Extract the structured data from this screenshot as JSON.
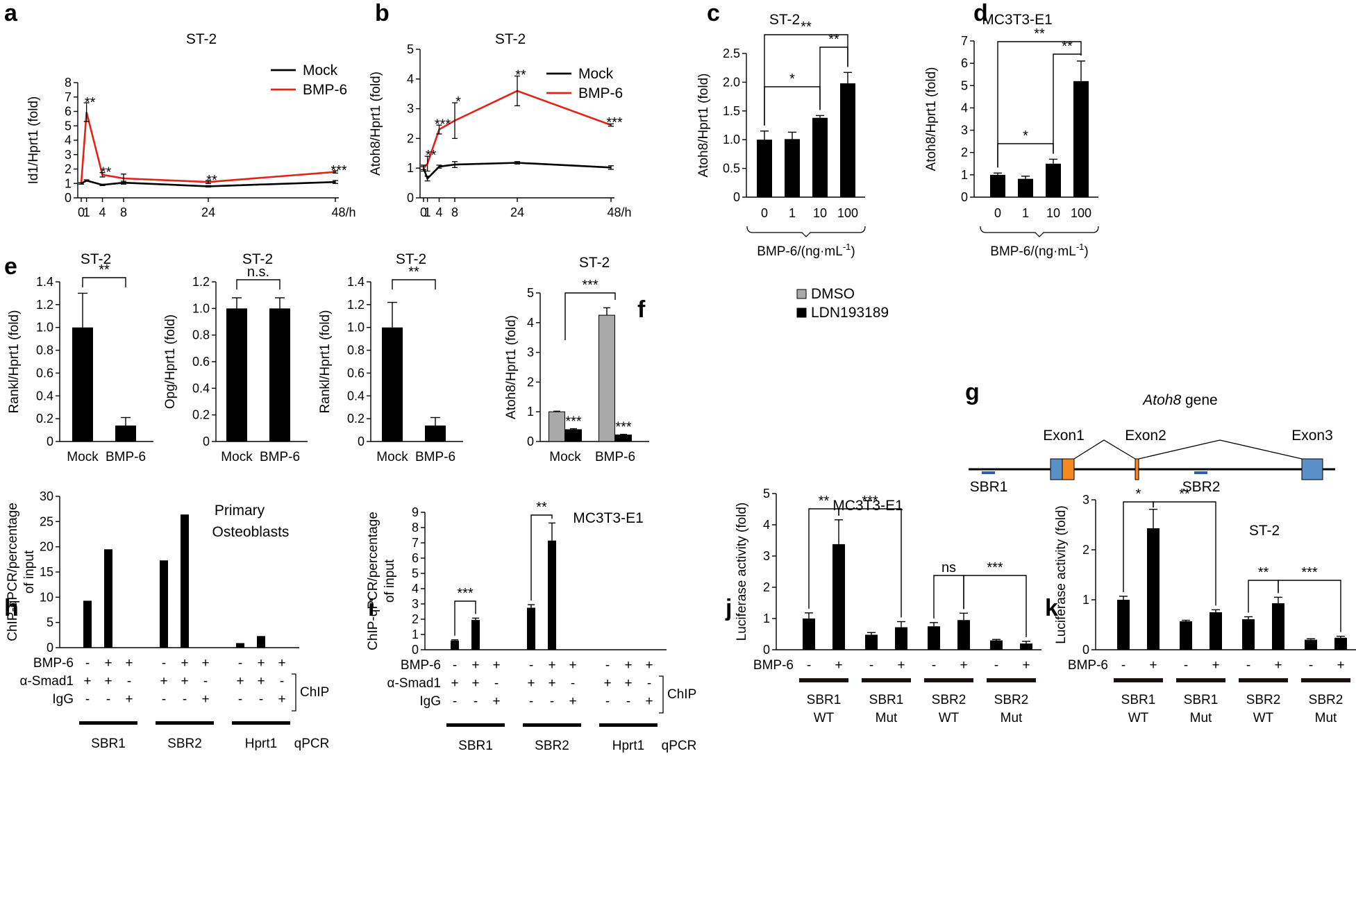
{
  "figure": {
    "type": "multi-panel scientific figure"
  },
  "colors": {
    "mock": "#000000",
    "bmp6": "#e2231a",
    "bar": "#000000",
    "dmso": "#a9a9a9",
    "exon_blue": "#5b8fc7",
    "exon_orange": "#f5891f",
    "sbr": "#2b5fad"
  },
  "chart_data": [
    {
      "id": "a",
      "panel_label": "a",
      "type": "line",
      "title": "ST-2",
      "ylabel": "Id1/Hprt1 (fold)",
      "xlabel": "",
      "ylim": [
        0,
        8
      ],
      "yticks": [
        "0",
        "1",
        "2",
        "3",
        "4",
        "5",
        "6",
        "7",
        "8"
      ],
      "x": [
        0,
        1,
        4,
        8,
        24,
        48
      ],
      "xticklabels": [
        "0",
        "1",
        "4",
        "8",
        "24",
        "48/h"
      ],
      "series": [
        {
          "name": "Mock",
          "values": [
            1.0,
            1.2,
            0.9,
            1.05,
            0.8,
            1.1
          ],
          "errors": [
            0.05,
            0.05,
            0.05,
            0.1,
            0.05,
            0.1
          ]
        },
        {
          "name": "BMP-6",
          "values": [
            1.0,
            5.95,
            1.6,
            1.35,
            1.1,
            1.8
          ],
          "errors": [
            0.05,
            0.65,
            0.15,
            0.3,
            0.1,
            0.08
          ]
        }
      ],
      "annotations": [
        {
          "x": 1,
          "y": 6.6,
          "text": "**"
        },
        {
          "x": 4,
          "y": 1.75,
          "text": "**"
        },
        {
          "x": 24,
          "y": 1.2,
          "text": "**"
        },
        {
          "x": 48,
          "y": 1.88,
          "text": "***"
        }
      ],
      "legend": [
        "Mock",
        "BMP-6"
      ]
    },
    {
      "id": "b",
      "panel_label": "b",
      "type": "line",
      "title": "ST-2",
      "ylabel": "Atoh8/Hprt1 (fold)",
      "xlabel": "",
      "ylim": [
        0,
        5
      ],
      "yticks": [
        "0",
        "1",
        "2",
        "3",
        "4",
        "5"
      ],
      "x": [
        0,
        1,
        4,
        8,
        24,
        48
      ],
      "xticklabels": [
        "0",
        "1",
        "4",
        "8",
        "24",
        "48/h"
      ],
      "series": [
        {
          "name": "Mock",
          "values": [
            1.0,
            0.65,
            1.05,
            1.12,
            1.18,
            1.02
          ],
          "errors": [
            0.05,
            0.08,
            0.05,
            0.1,
            0.04,
            0.06
          ]
        },
        {
          "name": "BMP-6",
          "values": [
            1.0,
            1.15,
            2.3,
            2.6,
            3.6,
            2.45
          ],
          "errors": [
            0.1,
            0.25,
            0.15,
            0.6,
            0.5,
            0.04
          ]
        }
      ],
      "annotations": [
        {
          "x": 1,
          "y": 1.42,
          "text": "**"
        },
        {
          "x": 4,
          "y": 2.47,
          "text": "***"
        },
        {
          "x": 8,
          "y": 3.22,
          "text": "*"
        },
        {
          "x": 24,
          "y": 4.12,
          "text": "**"
        },
        {
          "x": 48,
          "y": 2.52,
          "text": "***"
        }
      ],
      "legend": [
        "Mock",
        "BMP-6"
      ]
    },
    {
      "id": "c",
      "panel_label": "c",
      "type": "bar",
      "title": "ST-2",
      "ylabel": "Atoh8/Hprt1 (fold)",
      "xlabel": "BMP-6/(ng·mL",
      "xlabel_sup": "-1",
      "xlabel_end": ")",
      "ylim": [
        0,
        2.5
      ],
      "yticks": [
        "0",
        "0.5",
        "1.0",
        "1.5",
        "2.0",
        "2.5"
      ],
      "categories": [
        "0",
        "1",
        "10",
        "100"
      ],
      "values": [
        1.0,
        1.01,
        1.38,
        1.98
      ],
      "errors": [
        0.15,
        0.12,
        0.04,
        0.19
      ],
      "brackets": [
        {
          "from": 0,
          "to": 2,
          "text": "*"
        },
        {
          "from": 2,
          "to": 3,
          "text": "**"
        },
        {
          "from": 0,
          "to": 3,
          "text": "**"
        }
      ]
    },
    {
      "id": "d",
      "panel_label": "d",
      "type": "bar",
      "title": "MC3T3-E1",
      "ylabel": "Atoh8/Hprt1 (fold)",
      "xlabel": "BMP-6/(ng·mL",
      "xlabel_sup": "-1",
      "xlabel_end": ")",
      "ylim": [
        0,
        7
      ],
      "yticks": [
        "0",
        "1",
        "2",
        "3",
        "4",
        "5",
        "6",
        "7"
      ],
      "categories": [
        "0",
        "1",
        "10",
        "100"
      ],
      "values": [
        1.0,
        0.82,
        1.5,
        5.2
      ],
      "errors": [
        0.08,
        0.12,
        0.2,
        0.9
      ],
      "brackets": [
        {
          "from": 0,
          "to": 2,
          "text": "*"
        },
        {
          "from": 2,
          "to": 3,
          "text": "**"
        },
        {
          "from": 0,
          "to": 3,
          "text": "**"
        }
      ]
    },
    {
      "id": "e1",
      "panel_label": "e",
      "type": "bar",
      "title": "ST-2",
      "ylabel": "Rankl/Hprt1 (fold)",
      "ylim": [
        0,
        1.4
      ],
      "yticks": [
        "0",
        "0.2",
        "0.4",
        "0.6",
        "0.8",
        "1.0",
        "1.2",
        "1.4"
      ],
      "categories": [
        "Mock",
        "BMP-6"
      ],
      "values": [
        1.0,
        0.14
      ],
      "errors": [
        0.3,
        0.07
      ],
      "brackets": [
        {
          "from": 0,
          "to": 1,
          "text": "**"
        }
      ]
    },
    {
      "id": "e2",
      "panel_label": "",
      "type": "bar",
      "title": "ST-2",
      "ylabel": "Opg/Hprt1 (fold)",
      "ylim": [
        0,
        1.2
      ],
      "yticks": [
        "0",
        "0.2",
        "0.4",
        "0.6",
        "0.8",
        "1.0",
        "1.2"
      ],
      "categories": [
        "Mock",
        "BMP-6"
      ],
      "values": [
        1.0,
        1.0
      ],
      "errors": [
        0.08,
        0.08
      ],
      "brackets": [
        {
          "from": 0,
          "to": 1,
          "text": "n.s."
        }
      ]
    },
    {
      "id": "e3",
      "panel_label": "",
      "type": "bar",
      "title": "ST-2",
      "ylabel": "Rankl/Hprt1 (fold)",
      "ylim": [
        0,
        1.4
      ],
      "yticks": [
        "0",
        "0.2",
        "0.4",
        "0.6",
        "0.8",
        "1.0",
        "1.2",
        "1.4"
      ],
      "categories": [
        "Mock",
        "BMP-6"
      ],
      "values": [
        1.0,
        0.14
      ],
      "errors": [
        0.22,
        0.07
      ],
      "brackets": [
        {
          "from": 0,
          "to": 1,
          "text": "**"
        }
      ]
    },
    {
      "id": "f",
      "panel_label": "f",
      "type": "bar",
      "title": "ST-2",
      "ylabel": "Atoh8/Hprt1 (fold)",
      "ylim": [
        0,
        5
      ],
      "yticks": [
        "0",
        "1",
        "2",
        "3",
        "4",
        "5"
      ],
      "categories": [
        "Mock",
        "BMP-6"
      ],
      "series": [
        {
          "name": "DMSO",
          "values": [
            1.0,
            4.25
          ],
          "errors": [
            0.02,
            0.25
          ]
        },
        {
          "name": "LDN193189",
          "values": [
            0.4,
            0.22
          ],
          "errors": [
            0.03,
            0.02
          ]
        }
      ],
      "annotations": [
        {
          "series": 1,
          "category": 0,
          "text": "***"
        },
        {
          "series": 1,
          "category": 1,
          "text": "***"
        }
      ],
      "bracket_text": "***",
      "legend": [
        "DMSO",
        "LDN193189"
      ]
    },
    {
      "id": "h",
      "panel_label": "h",
      "type": "bar",
      "title": "Primary",
      "title2": "Osteoblasts",
      "ylabel": "ChIP-qPCR/percentage",
      "ylabel2": "of input",
      "ylim": [
        0,
        30
      ],
      "yticks": [
        "0",
        "5",
        "10",
        "15",
        "20",
        "25",
        "30"
      ],
      "values": [
        9.3,
        19.5,
        0,
        17.3,
        26.4,
        0,
        0.9,
        2.3,
        0
      ],
      "errors": [
        0,
        0,
        0,
        0,
        0,
        0,
        0,
        0,
        0
      ],
      "rows": [
        {
          "label": "BMP-6",
          "signs": [
            "-",
            "+",
            "+",
            "-",
            "+",
            "+",
            "-",
            "+",
            "+"
          ]
        },
        {
          "label": "α-Smad1",
          "signs": [
            "+",
            "+",
            "-",
            "+",
            "+",
            "-",
            "+",
            "+",
            "-"
          ]
        },
        {
          "label": "IgG",
          "signs": [
            "-",
            "-",
            "+",
            "-",
            "-",
            "+",
            "-",
            "-",
            "+"
          ]
        }
      ],
      "chip_label": "ChIP",
      "groups": [
        "SBR1",
        "SBR2",
        "Hprt1"
      ],
      "group_suffix": "qPCR"
    },
    {
      "id": "i",
      "panel_label": "i",
      "type": "bar",
      "title": "MC3T3-E1",
      "ylabel": "ChIP-qPCR/percentage",
      "ylabel2": "of input",
      "ylim": [
        0,
        9
      ],
      "yticks": [
        "0",
        "1",
        "2",
        "3",
        "4",
        "5",
        "6",
        "7",
        "8",
        "9"
      ],
      "values": [
        0.6,
        1.95,
        0,
        2.75,
        7.15,
        0,
        0,
        0,
        0
      ],
      "errors": [
        0.05,
        0.12,
        0,
        0.2,
        1.15,
        0,
        0,
        0,
        0
      ],
      "rows": [
        {
          "label": "BMP-6",
          "signs": [
            "-",
            "+",
            "+",
            "-",
            "+",
            "+",
            "-",
            "+",
            "+"
          ]
        },
        {
          "label": "α-Smad1",
          "signs": [
            "+",
            "+",
            "-",
            "+",
            "+",
            "-",
            "+",
            "+",
            "-"
          ]
        },
        {
          "label": "IgG",
          "signs": [
            "-",
            "-",
            "+",
            "-",
            "-",
            "+",
            "-",
            "-",
            "+"
          ]
        }
      ],
      "chip_label": "ChIP",
      "groups": [
        "SBR1",
        "SBR2",
        "Hprt1"
      ],
      "group_suffix": "qPCR",
      "brackets": [
        {
          "from": 0,
          "to": 1,
          "text": "***"
        },
        {
          "from": 3,
          "to": 4,
          "text": "**"
        }
      ]
    },
    {
      "id": "j",
      "panel_label": "j",
      "type": "bar",
      "title": "MC3T3-E1",
      "ylabel": "Luciferase activity (fold)",
      "ylim": [
        0,
        5
      ],
      "yticks": [
        "0",
        "1",
        "2",
        "3",
        "4",
        "5"
      ],
      "values": [
        1.0,
        3.38,
        0.48,
        0.72,
        0.75,
        0.95,
        0.3,
        0.2
      ],
      "errors": [
        0.18,
        0.78,
        0.07,
        0.18,
        0.12,
        0.22,
        0.03,
        0.07
      ],
      "rows": [
        {
          "label": "BMP-6",
          "signs": [
            "-",
            "+",
            "-",
            "+",
            "-",
            "+",
            "-",
            "+"
          ]
        }
      ],
      "groups": [
        "SBR1",
        "SBR1",
        "SBR2",
        "SBR2"
      ],
      "groups2": [
        "WT",
        "Mut",
        "WT",
        "Mut"
      ],
      "brackets": [
        {
          "from": 0,
          "to": 1,
          "text": "**"
        },
        {
          "from": 1,
          "to": 3,
          "text": "***"
        },
        {
          "from": 4,
          "to": 5,
          "text": "ns"
        },
        {
          "from": 5,
          "to": 7,
          "text": "***"
        }
      ]
    },
    {
      "id": "k",
      "panel_label": "k",
      "type": "bar",
      "title": "ST-2",
      "ylabel": "Luciferase activity (fold)",
      "ylim": [
        0,
        3
      ],
      "yticks": [
        "0",
        "1",
        "2",
        "3"
      ],
      "values": [
        1.0,
        2.43,
        0.57,
        0.75,
        0.61,
        0.93,
        0.2,
        0.24
      ],
      "errors": [
        0.07,
        0.38,
        0.02,
        0.05,
        0.05,
        0.12,
        0.02,
        0.03
      ],
      "rows": [
        {
          "label": "BMP-6",
          "signs": [
            "-",
            "+",
            "-",
            "+",
            "-",
            "+",
            "-",
            "+"
          ]
        }
      ],
      "groups": [
        "SBR1",
        "SBR1",
        "SBR2",
        "SBR2"
      ],
      "groups2": [
        "WT",
        "Mut",
        "WT",
        "Mut"
      ],
      "brackets": [
        {
          "from": 0,
          "to": 1,
          "text": "*"
        },
        {
          "from": 1,
          "to": 3,
          "text": "**"
        },
        {
          "from": 4,
          "to": 5,
          "text": "**"
        },
        {
          "from": 5,
          "to": 7,
          "text": "***"
        }
      ]
    }
  ],
  "gene_diagram": {
    "panel_label": "g",
    "title": "Atoh8",
    "title_suffix": " gene",
    "exons": [
      "Exon1",
      "Exon2",
      "Exon3"
    ],
    "regions": [
      "SBR1",
      "SBR2"
    ]
  }
}
